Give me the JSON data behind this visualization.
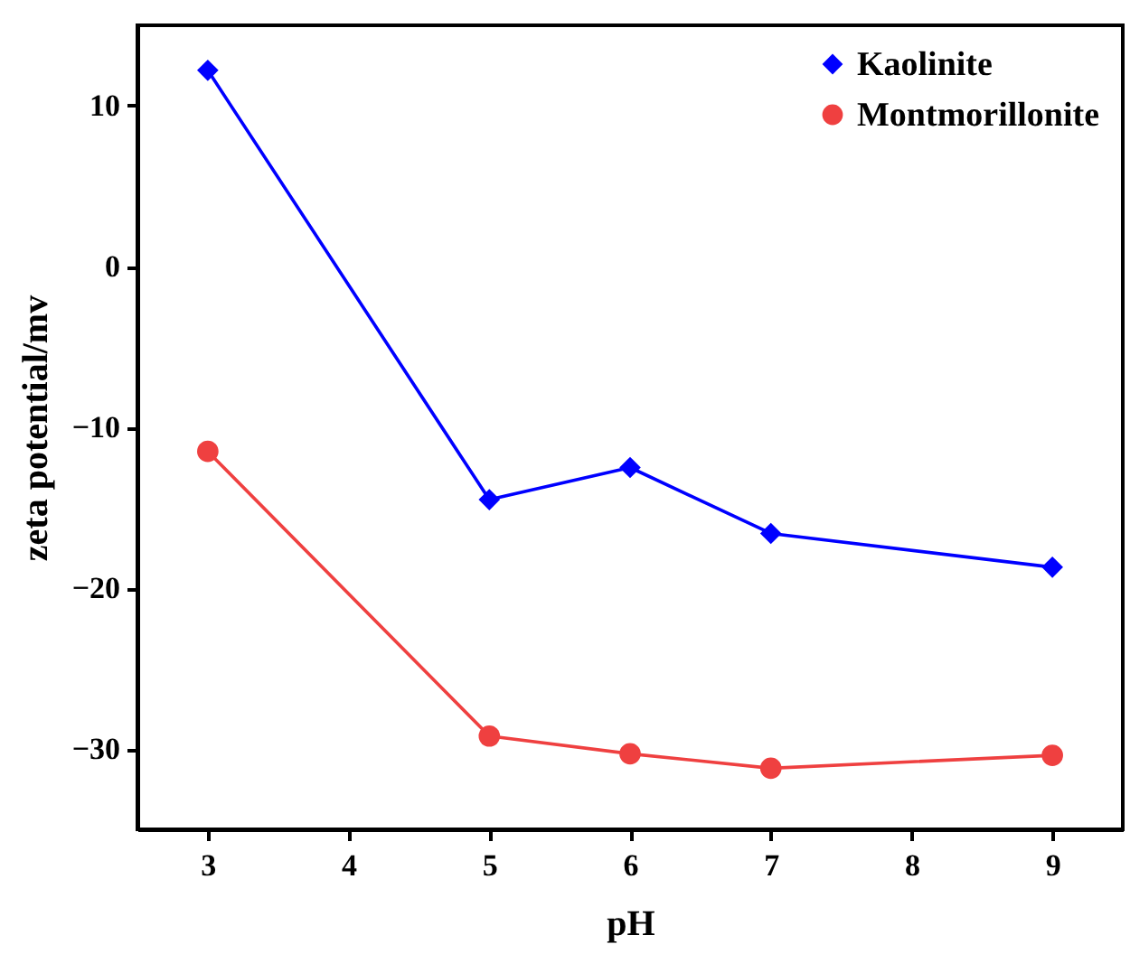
{
  "chart_data": {
    "type": "line",
    "xlabel": "pH",
    "ylabel": "zeta potential/mv",
    "x": [
      3,
      5,
      6,
      7,
      9
    ],
    "series": [
      {
        "name": "Kaolinite",
        "color": "#0000ff",
        "marker": "diamond",
        "values": [
          12.2,
          -14.5,
          -12.5,
          -16.6,
          -18.7
        ]
      },
      {
        "name": "Montmorillonite",
        "color": "#ef4040",
        "marker": "circle",
        "values": [
          -11.5,
          -29.2,
          -30.3,
          -31.2,
          -30.4
        ]
      }
    ],
    "xlim": [
      2.5,
      9.5
    ],
    "xticks": [
      3,
      4,
      5,
      6,
      7,
      8,
      9
    ],
    "ylim": [
      -35,
      15
    ],
    "yticks": [
      -30,
      -20,
      -10,
      0,
      10
    ],
    "grid": false,
    "legend": "top right",
    "line_style": "solid"
  }
}
